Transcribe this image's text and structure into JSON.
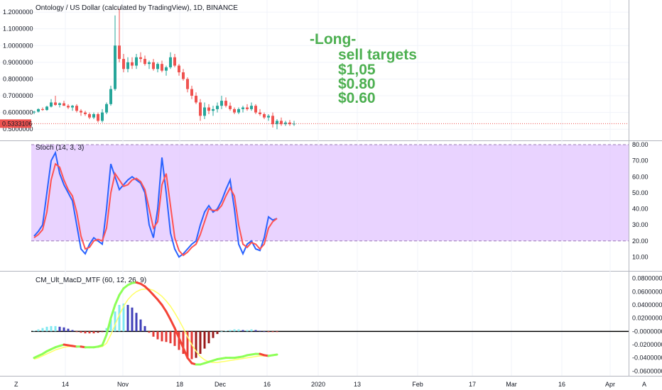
{
  "chart_data": [
    {
      "type": "candlestick",
      "title": "Ontology / US Dollar (calculated by TradingView), 1D, BINANCE",
      "x_tick_labels": [
        "14",
        "Nov",
        "18",
        "Dec",
        "16",
        "2020",
        "13",
        "Feb",
        "17",
        "Mar",
        "16",
        "Apr"
      ],
      "y_tick_labels": [
        "1.2000000",
        "1.1000000",
        "1.0000000",
        "0.9000000",
        "0.8000000",
        "0.7000000",
        "0.6000000",
        "0.5000000"
      ],
      "ylim": [
        0.45,
        1.23
      ],
      "last_price_label": "0.5333106",
      "last_price": 0.5333,
      "ohlc": [
        [
          0.6,
          0.61,
          0.59,
          0.605
        ],
        [
          0.605,
          0.625,
          0.6,
          0.62
        ],
        [
          0.62,
          0.63,
          0.61,
          0.615
        ],
        [
          0.615,
          0.64,
          0.61,
          0.635
        ],
        [
          0.635,
          0.68,
          0.63,
          0.66
        ],
        [
          0.66,
          0.7,
          0.64,
          0.645
        ],
        [
          0.645,
          0.66,
          0.63,
          0.655
        ],
        [
          0.655,
          0.67,
          0.64,
          0.64
        ],
        [
          0.64,
          0.65,
          0.62,
          0.63
        ],
        [
          0.63,
          0.645,
          0.61,
          0.64
        ],
        [
          0.64,
          0.65,
          0.6,
          0.61
        ],
        [
          0.61,
          0.62,
          0.58,
          0.6
        ],
        [
          0.6,
          0.61,
          0.58,
          0.59
        ],
        [
          0.59,
          0.6,
          0.56,
          0.57
        ],
        [
          0.57,
          0.6,
          0.56,
          0.59
        ],
        [
          0.59,
          0.6,
          0.54,
          0.55
        ],
        [
          0.55,
          0.62,
          0.54,
          0.6
        ],
        [
          0.6,
          0.66,
          0.59,
          0.65
        ],
        [
          0.65,
          0.76,
          0.64,
          0.74
        ],
        [
          0.74,
          1.18,
          0.73,
          1.0
        ],
        [
          1.0,
          1.22,
          0.9,
          0.92
        ],
        [
          0.92,
          0.95,
          0.84,
          0.86
        ],
        [
          0.86,
          0.93,
          0.84,
          0.9
        ],
        [
          0.9,
          0.93,
          0.86,
          0.88
        ],
        [
          0.88,
          0.95,
          0.86,
          0.93
        ],
        [
          0.93,
          0.96,
          0.9,
          0.92
        ],
        [
          0.92,
          0.94,
          0.88,
          0.89
        ],
        [
          0.89,
          0.91,
          0.86,
          0.9
        ],
        [
          0.9,
          0.92,
          0.85,
          0.86
        ],
        [
          0.86,
          0.9,
          0.84,
          0.89
        ],
        [
          0.89,
          0.91,
          0.84,
          0.85
        ],
        [
          0.85,
          0.88,
          0.82,
          0.87
        ],
        [
          0.87,
          0.96,
          0.86,
          0.93
        ],
        [
          0.93,
          0.95,
          0.87,
          0.88
        ],
        [
          0.88,
          0.89,
          0.82,
          0.84
        ],
        [
          0.84,
          0.86,
          0.79,
          0.8
        ],
        [
          0.8,
          0.81,
          0.72,
          0.74
        ],
        [
          0.74,
          0.76,
          0.68,
          0.7
        ],
        [
          0.7,
          0.72,
          0.65,
          0.66
        ],
        [
          0.66,
          0.68,
          0.55,
          0.58
        ],
        [
          0.58,
          0.66,
          0.56,
          0.63
        ],
        [
          0.63,
          0.65,
          0.59,
          0.61
        ],
        [
          0.61,
          0.64,
          0.58,
          0.62
        ],
        [
          0.62,
          0.66,
          0.6,
          0.64
        ],
        [
          0.64,
          0.7,
          0.62,
          0.67
        ],
        [
          0.67,
          0.69,
          0.63,
          0.64
        ],
        [
          0.64,
          0.66,
          0.61,
          0.62
        ],
        [
          0.62,
          0.63,
          0.59,
          0.6
        ],
        [
          0.6,
          0.63,
          0.59,
          0.62
        ],
        [
          0.62,
          0.64,
          0.6,
          0.63
        ],
        [
          0.63,
          0.65,
          0.61,
          0.62
        ],
        [
          0.62,
          0.66,
          0.61,
          0.64
        ],
        [
          0.64,
          0.65,
          0.59,
          0.6
        ],
        [
          0.6,
          0.62,
          0.58,
          0.59
        ],
        [
          0.59,
          0.6,
          0.56,
          0.57
        ],
        [
          0.57,
          0.59,
          0.55,
          0.58
        ],
        [
          0.58,
          0.6,
          0.51,
          0.53
        ],
        [
          0.53,
          0.56,
          0.5,
          0.55
        ],
        [
          0.55,
          0.57,
          0.52,
          0.53
        ],
        [
          0.53,
          0.55,
          0.52,
          0.54
        ],
        [
          0.54,
          0.555,
          0.52,
          0.53
        ],
        [
          0.53,
          0.55,
          0.52,
          0.5333
        ]
      ],
      "annotations": [
        "-Long-",
        "sell targets",
        "$1,05",
        "$0.80",
        "$0.60"
      ]
    },
    {
      "type": "line",
      "title": "Stoch (14, 3, 3)",
      "y_tick_labels": [
        "80.00",
        "70.00",
        "60.00",
        "50.00",
        "40.00",
        "30.00",
        "20.00",
        "10.00"
      ],
      "ylim": [
        4,
        80
      ],
      "band": [
        20,
        80
      ],
      "series": [
        {
          "color": "#2962ff",
          "values": [
            23,
            26,
            30,
            50,
            70,
            75,
            62,
            55,
            50,
            45,
            30,
            15,
            12,
            18,
            22,
            20,
            18,
            40,
            68,
            60,
            52,
            55,
            58,
            60,
            58,
            56,
            50,
            30,
            22,
            40,
            72,
            50,
            25,
            15,
            10,
            12,
            15,
            18,
            20,
            30,
            38,
            42,
            38,
            40,
            45,
            52,
            58,
            40,
            18,
            12,
            18,
            20,
            15,
            14,
            22,
            35,
            33,
            34
          ]
        },
        {
          "color": "#ff5252",
          "values": [
            22,
            24,
            27,
            38,
            58,
            68,
            66,
            58,
            52,
            48,
            38,
            23,
            15,
            16,
            20,
            21,
            20,
            28,
            50,
            62,
            58,
            54,
            55,
            58,
            59,
            57,
            52,
            40,
            28,
            32,
            55,
            62,
            42,
            22,
            14,
            11,
            13,
            16,
            18,
            24,
            32,
            40,
            39,
            39,
            42,
            48,
            53,
            48,
            30,
            18,
            16,
            19,
            18,
            15,
            18,
            28,
            32,
            34
          ]
        }
      ]
    },
    {
      "type": "bar",
      "title": "CM_Ult_MacD_MTF (60, 12, 26, 9)",
      "y_tick_labels": [
        "0.0800000",
        "0.0600000",
        "0.0400000",
        "0.0200000",
        "-0.0000000",
        "-0.0200000",
        "-0.0400000",
        "-0.0600000"
      ],
      "ylim": [
        -0.065,
        0.085
      ],
      "histogram": [
        0.001,
        0.003,
        0.005,
        0.007,
        0.008,
        0.008,
        0.007,
        0.006,
        0.004,
        0.002,
        -0.001,
        -0.002,
        -0.003,
        -0.003,
        -0.003,
        -0.002,
        -0.001,
        0.005,
        0.018,
        0.03,
        0.04,
        0.042,
        0.04,
        0.036,
        0.028,
        0.018,
        0.008,
        -0.002,
        -0.008,
        -0.012,
        -0.015,
        -0.016,
        -0.018,
        -0.022,
        -0.028,
        -0.034,
        -0.04,
        -0.042,
        -0.04,
        -0.034,
        -0.026,
        -0.018,
        -0.01,
        -0.004,
        0.0,
        0.001,
        0.002,
        0.003,
        0.003,
        0.002,
        0.002,
        0.003,
        0.002,
        0.001,
        0.0,
        -0.001,
        -0.001,
        -0.001
      ],
      "series": [
        {
          "color": "#8cff57",
          "values": [
            -0.04,
            -0.037,
            -0.034,
            -0.03,
            -0.027,
            -0.024,
            -0.022,
            -0.02,
            -0.021,
            -0.022,
            -0.023,
            -0.023,
            -0.024,
            -0.024,
            -0.024,
            -0.023,
            -0.021,
            -0.005,
            0.02,
            0.04,
            0.055,
            0.065,
            0.07,
            0.073,
            0.074,
            0.072,
            0.068,
            0.062,
            0.055,
            0.048,
            0.04,
            0.03,
            0.018,
            0.005,
            -0.01,
            -0.025,
            -0.04,
            -0.048,
            -0.05,
            -0.05,
            -0.048,
            -0.046,
            -0.044,
            -0.042,
            -0.041,
            -0.04,
            -0.04,
            -0.04,
            -0.039,
            -0.038,
            -0.036,
            -0.035,
            -0.034,
            -0.034,
            -0.036,
            -0.037,
            -0.036,
            -0.035
          ]
        },
        {
          "color": "#ffff66",
          "values": [
            -0.042,
            -0.04,
            -0.037,
            -0.034,
            -0.031,
            -0.028,
            -0.026,
            -0.024,
            -0.023,
            -0.023,
            -0.023,
            -0.023,
            -0.024,
            -0.024,
            -0.024,
            -0.024,
            -0.023,
            -0.018,
            -0.005,
            0.01,
            0.025,
            0.038,
            0.048,
            0.055,
            0.06,
            0.063,
            0.064,
            0.064,
            0.062,
            0.058,
            0.053,
            0.046,
            0.038,
            0.028,
            0.017,
            0.005,
            -0.008,
            -0.02,
            -0.03,
            -0.038,
            -0.043,
            -0.046,
            -0.047,
            -0.047,
            -0.046,
            -0.045,
            -0.044,
            -0.043,
            -0.042,
            -0.041,
            -0.04,
            -0.039,
            -0.038,
            -0.037,
            -0.037,
            -0.037,
            -0.036,
            -0.036
          ]
        }
      ]
    }
  ],
  "left_badge": "Z",
  "right_badge": "A"
}
